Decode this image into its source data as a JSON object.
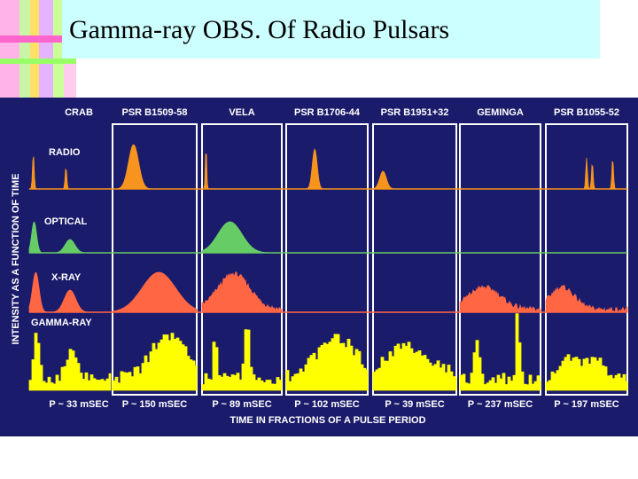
{
  "title": "Gamma-ray OBS.  Of Radio Pulsars",
  "figure": {
    "pulsars": [
      {
        "name": "CRAB",
        "period": "P ~ 33 mSEC"
      },
      {
        "name": "PSR B1509-58",
        "period": "P ~ 150 mSEC"
      },
      {
        "name": "VELA",
        "period": "P ~ 89 mSEC"
      },
      {
        "name": "PSR B1706-44",
        "period": "P ~ 102 mSEC"
      },
      {
        "name": "PSR B1951+32",
        "period": "P ~ 39 mSEC"
      },
      {
        "name": "GEMINGA",
        "period": "P ~  237 mSEC"
      },
      {
        "name": "PSR B1055-52",
        "period": "P ~ 197 mSEC"
      }
    ],
    "bands": [
      "RADIO",
      "OPTICAL",
      "X-RAY",
      "GAMMA-RAY"
    ],
    "y_axis_label": "INTENSITY AS A FUNCTION OF TIME",
    "x_axis_label": "TIME IN FRACTIONS OF A PULSE PERIOD"
  }
}
